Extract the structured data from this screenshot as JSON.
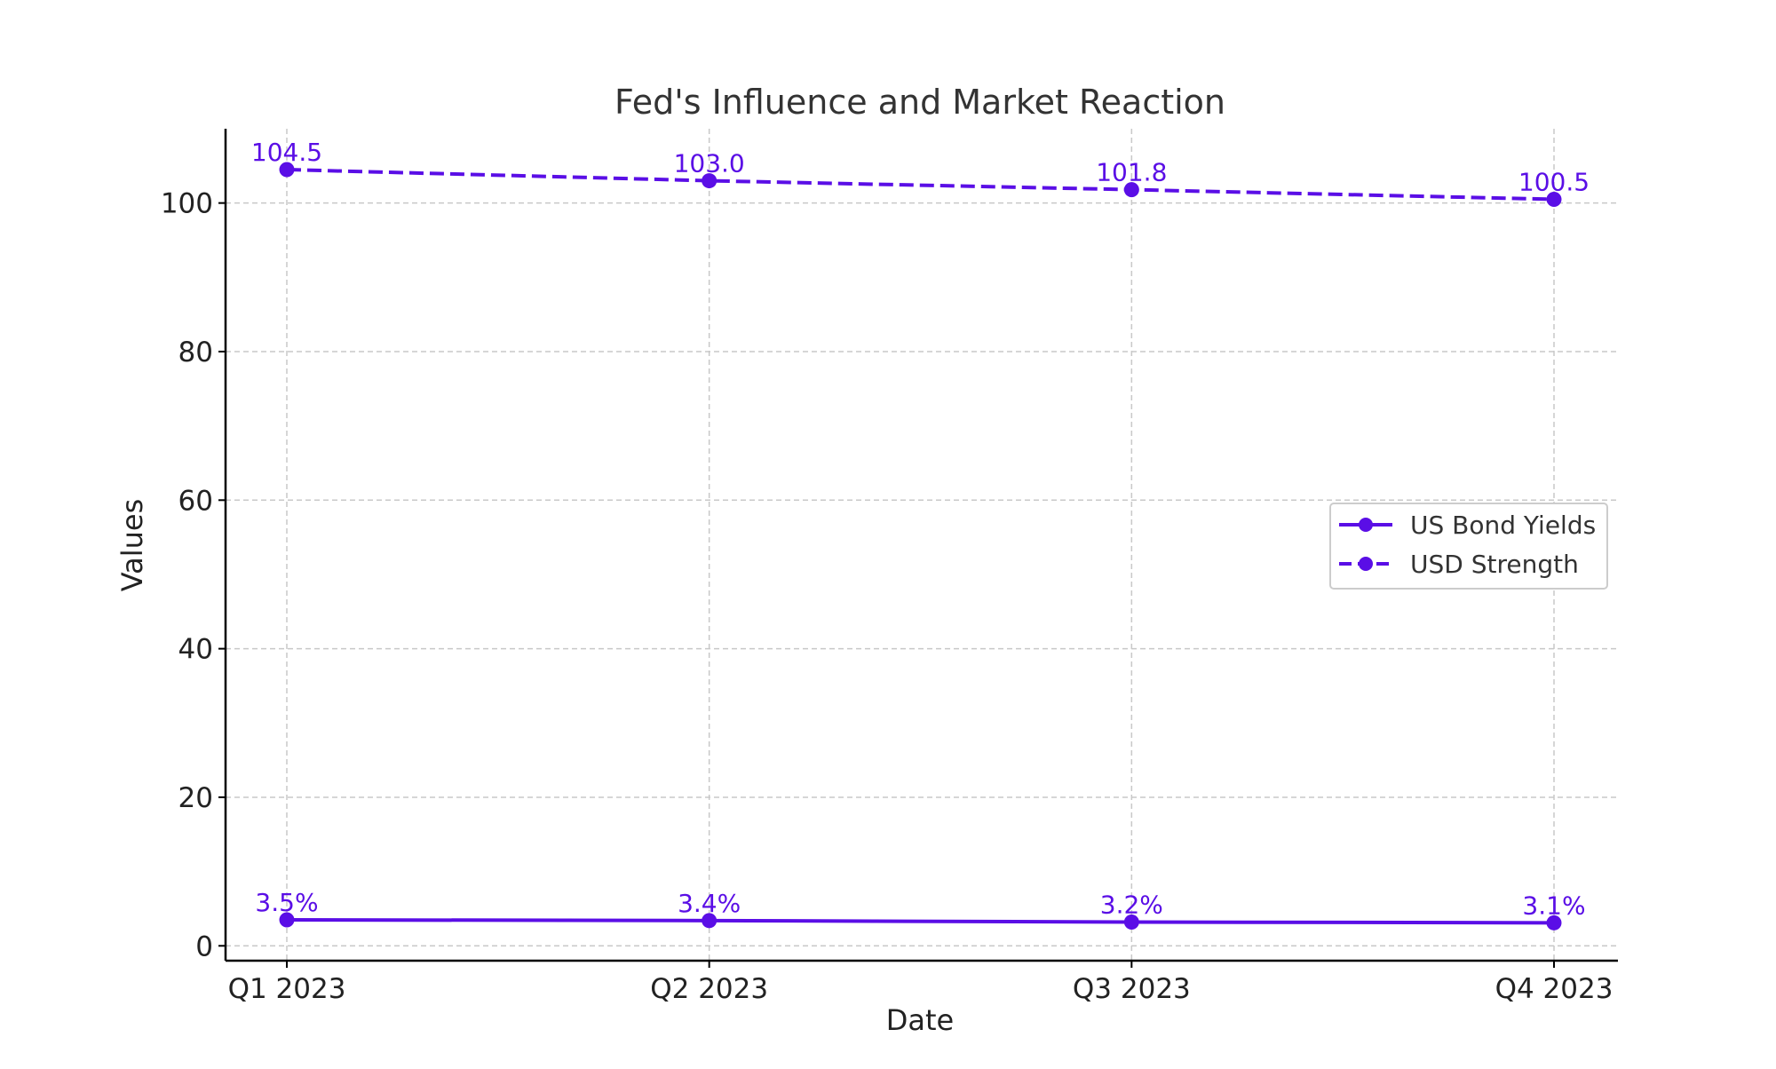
{
  "chart_data": {
    "type": "line",
    "title": "Fed's Influence and Market Reaction",
    "xlabel": "Date",
    "ylabel": "Values",
    "categories": [
      "Q1 2023",
      "Q2 2023",
      "Q3 2023",
      "Q4 2023"
    ],
    "ylim": [
      -2,
      110
    ],
    "yticks": [
      0,
      20,
      40,
      60,
      80,
      100
    ],
    "grid": true,
    "legend_position": "center-right",
    "series": [
      {
        "name": "US Bond Yields",
        "values": [
          3.5,
          3.4,
          3.2,
          3.1
        ],
        "labels": [
          "3.5%",
          "3.4%",
          "3.2%",
          "3.1%"
        ],
        "line_style": "solid",
        "marker": "circle",
        "color": "#5a0ee6"
      },
      {
        "name": "USD Strength",
        "values": [
          104.5,
          103.0,
          101.8,
          100.5
        ],
        "labels": [
          "104.5",
          "103.0",
          "101.8",
          "100.5"
        ],
        "line_style": "dashed",
        "marker": "circle",
        "color": "#5a0ee6"
      }
    ],
    "colors": {
      "series": "#5a0ee6",
      "axis": "#000000",
      "grid": "#c8c8c8",
      "text": "#222222",
      "title": "#333333"
    }
  }
}
